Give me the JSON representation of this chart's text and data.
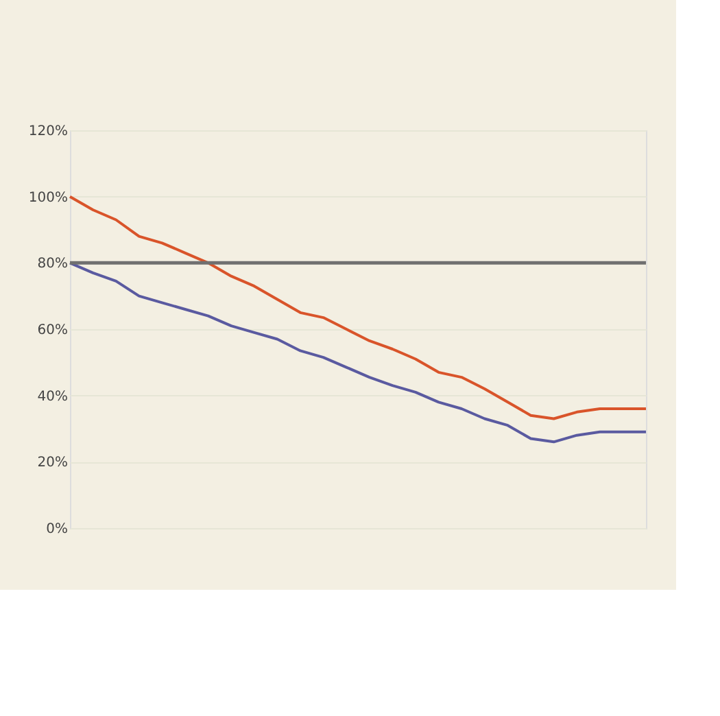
{
  "chart_data": {
    "type": "line",
    "categories": [
      null,
      null,
      null,
      null,
      null,
      null,
      null,
      null,
      null,
      null,
      null,
      null,
      null,
      null,
      null,
      null,
      null,
      null,
      null,
      null,
      null,
      null,
      null,
      null,
      null,
      null
    ],
    "series": [
      {
        "color": "#d9542a",
        "values": [
          100,
          96,
          93,
          88,
          86,
          83,
          80,
          76,
          73,
          69,
          65,
          63.5,
          60,
          56.5,
          54,
          51,
          47,
          45.5,
          42,
          38,
          34,
          33,
          35,
          36,
          36,
          36
        ]
      },
      {
        "color": "#5a5aa0",
        "values": [
          80,
          77,
          74.5,
          70,
          68,
          66,
          64,
          61,
          59,
          57,
          53.5,
          51.5,
          48.5,
          45.5,
          43,
          41,
          38,
          36,
          33,
          31,
          27,
          26,
          28,
          29,
          29,
          29
        ]
      }
    ],
    "ylim": [
      0,
      120
    ],
    "yticks": [
      {
        "value": 0,
        "label": "0%"
      },
      {
        "value": 20,
        "label": "20%"
      },
      {
        "value": 40,
        "label": "40%"
      },
      {
        "value": 60,
        "label": "60%"
      },
      {
        "value": 80,
        "label": "80%"
      },
      {
        "value": 100,
        "label": "100%"
      },
      {
        "value": 120,
        "label": "120%"
      }
    ],
    "ref_lines": [
      {
        "axis": "y",
        "value": 80,
        "color": "#707070"
      }
    ],
    "tick_labels": "y",
    "grid": "y",
    "marker": "none",
    "line_style": "solid",
    "legend": false
  }
}
